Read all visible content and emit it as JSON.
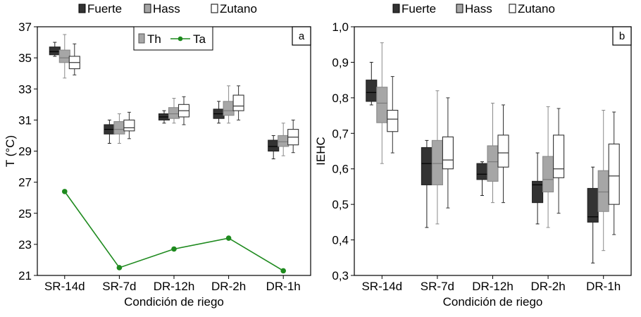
{
  "chart_data": [
    {
      "type": "box",
      "panel_label": "a",
      "xlabel": "Condición de riego",
      "ylabel": "T (°C)",
      "ylim": [
        21,
        37
      ],
      "y_ticks": [
        "21",
        "23",
        "25",
        "27",
        "29",
        "31",
        "33",
        "35",
        "37"
      ],
      "categories": [
        "SR-14d",
        "SR-7d",
        "DR-12h",
        "DR-2h",
        "DR-1h"
      ],
      "legend": [
        "Fuerte",
        "Hass",
        "Zutano"
      ],
      "colors": {
        "Fuerte": "#333333",
        "Hass": "#a6a6a6",
        "Zutano": "#ffffff",
        "Ta": "#1e8a1e"
      },
      "inner_legend": {
        "box_label": "Th",
        "line_label": "Ta",
        "placement": "top-center"
      },
      "series": [
        {
          "name": "Fuerte",
          "boxes": [
            {
              "min": 35.1,
              "q1": 35.2,
              "median": 35.4,
              "q3": 35.7,
              "max": 36.0
            },
            {
              "min": 29.5,
              "q1": 30.1,
              "median": 30.4,
              "q3": 30.7,
              "max": 31.0
            },
            {
              "min": 30.8,
              "q1": 31.0,
              "median": 31.2,
              "q3": 31.4,
              "max": 31.6
            },
            {
              "min": 30.8,
              "q1": 31.1,
              "median": 31.4,
              "q3": 31.7,
              "max": 32.2
            },
            {
              "min": 28.5,
              "q1": 29.0,
              "median": 29.3,
              "q3": 29.7,
              "max": 30.0
            }
          ]
        },
        {
          "name": "Hass",
          "boxes": [
            {
              "min": 33.7,
              "q1": 34.7,
              "median": 35.0,
              "q3": 35.5,
              "max": 36.5
            },
            {
              "min": 29.5,
              "q1": 30.1,
              "median": 30.4,
              "q3": 30.9,
              "max": 31.4
            },
            {
              "min": 30.8,
              "q1": 31.1,
              "median": 31.4,
              "q3": 31.8,
              "max": 32.4
            },
            {
              "min": 30.8,
              "q1": 31.3,
              "median": 31.6,
              "q3": 32.2,
              "max": 33.2
            },
            {
              "min": 28.7,
              "q1": 29.3,
              "median": 29.6,
              "q3": 30.0,
              "max": 30.8
            }
          ]
        },
        {
          "name": "Zutano",
          "boxes": [
            {
              "min": 33.9,
              "q1": 34.3,
              "median": 34.7,
              "q3": 35.1,
              "max": 35.9
            },
            {
              "min": 29.8,
              "q1": 30.3,
              "median": 30.5,
              "q3": 31.0,
              "max": 31.5
            },
            {
              "min": 30.7,
              "q1": 31.2,
              "median": 31.6,
              "q3": 32.0,
              "max": 32.5
            },
            {
              "min": 31.0,
              "q1": 31.6,
              "median": 31.9,
              "q3": 32.6,
              "max": 33.2
            },
            {
              "min": 28.9,
              "q1": 29.4,
              "median": 29.9,
              "q3": 30.4,
              "max": 31.0
            }
          ]
        }
      ],
      "line_series": {
        "name": "Ta",
        "values": [
          26.4,
          21.5,
          22.7,
          23.4,
          21.3
        ]
      }
    },
    {
      "type": "box",
      "panel_label": "b",
      "xlabel": "Condición de riego",
      "ylabel": "IEHC",
      "ylim": [
        0.3,
        1.0
      ],
      "y_ticks": [
        "0,3",
        "0,4",
        "0,5",
        "0,6",
        "0,7",
        "0,8",
        "0,9",
        "1,0"
      ],
      "categories": [
        "SR-14d",
        "SR-7d",
        "DR-12h",
        "DR-2h",
        "DR-1h"
      ],
      "legend": [
        "Fuerte",
        "Hass",
        "Zutano"
      ],
      "colors": {
        "Fuerte": "#333333",
        "Hass": "#a6a6a6",
        "Zutano": "#ffffff"
      },
      "series": [
        {
          "name": "Fuerte",
          "boxes": [
            {
              "min": 0.78,
              "q1": 0.79,
              "median": 0.815,
              "q3": 0.85,
              "max": 0.9
            },
            {
              "min": 0.435,
              "q1": 0.555,
              "median": 0.615,
              "q3": 0.66,
              "max": 0.68
            },
            {
              "min": 0.525,
              "q1": 0.57,
              "median": 0.585,
              "q3": 0.615,
              "max": 0.62
            },
            {
              "min": 0.445,
              "q1": 0.505,
              "median": 0.555,
              "q3": 0.565,
              "max": 0.645
            },
            {
              "min": 0.335,
              "q1": 0.45,
              "median": 0.465,
              "q3": 0.545,
              "max": 0.605
            }
          ]
        },
        {
          "name": "Hass",
          "boxes": [
            {
              "min": 0.615,
              "q1": 0.73,
              "median": 0.785,
              "q3": 0.83,
              "max": 0.955
            },
            {
              "min": 0.445,
              "q1": 0.555,
              "median": 0.615,
              "q3": 0.68,
              "max": 0.82
            },
            {
              "min": 0.505,
              "q1": 0.565,
              "median": 0.62,
              "q3": 0.665,
              "max": 0.785
            },
            {
              "min": 0.435,
              "q1": 0.535,
              "median": 0.57,
              "q3": 0.635,
              "max": 0.775
            },
            {
              "min": 0.37,
              "q1": 0.48,
              "median": 0.535,
              "q3": 0.595,
              "max": 0.765
            }
          ]
        },
        {
          "name": "Zutano",
          "boxes": [
            {
              "min": 0.645,
              "q1": 0.705,
              "median": 0.74,
              "q3": 0.765,
              "max": 0.86
            },
            {
              "min": 0.49,
              "q1": 0.6,
              "median": 0.625,
              "q3": 0.69,
              "max": 0.8
            },
            {
              "min": 0.505,
              "q1": 0.605,
              "median": 0.645,
              "q3": 0.695,
              "max": 0.78
            },
            {
              "min": 0.475,
              "q1": 0.575,
              "median": 0.6,
              "q3": 0.695,
              "max": 0.77
            },
            {
              "min": 0.415,
              "q1": 0.5,
              "median": 0.58,
              "q3": 0.67,
              "max": 0.76
            }
          ]
        }
      ]
    }
  ]
}
